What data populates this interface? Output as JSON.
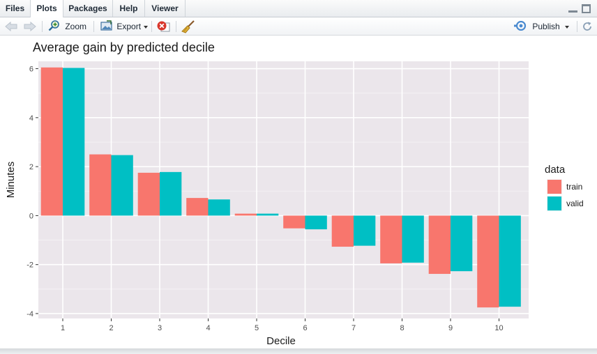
{
  "tabs": [
    {
      "label": "Files"
    },
    {
      "label": "Plots"
    },
    {
      "label": "Packages"
    },
    {
      "label": "Help"
    },
    {
      "label": "Viewer"
    }
  ],
  "toolbar": {
    "zoom_label": "Zoom",
    "export_label": "Export",
    "publish_label": "Publish"
  },
  "colors": {
    "train": "#F8766D",
    "valid": "#00BFC4",
    "panel": "#EBE6EB"
  },
  "chart_data": {
    "type": "bar",
    "title": "Average gain by predicted decile",
    "xlabel": "Decile",
    "ylabel": "Minutes",
    "categories": [
      "1",
      "2",
      "3",
      "4",
      "5",
      "6",
      "7",
      "8",
      "9",
      "10"
    ],
    "series": [
      {
        "name": "train",
        "values": [
          6.05,
          2.5,
          1.75,
          0.72,
          0.08,
          -0.52,
          -1.27,
          -1.95,
          -2.38,
          -3.75
        ]
      },
      {
        "name": "valid",
        "values": [
          6.03,
          2.47,
          1.78,
          0.66,
          0.08,
          -0.56,
          -1.23,
          -1.92,
          -2.27,
          -3.72
        ]
      }
    ],
    "ylim": [
      -4.2,
      6.3
    ],
    "yticks": [
      "-4",
      "-2",
      "0",
      "2",
      "4",
      "6"
    ],
    "legend": {
      "title": "data",
      "placement": "right"
    },
    "grid": true
  }
}
